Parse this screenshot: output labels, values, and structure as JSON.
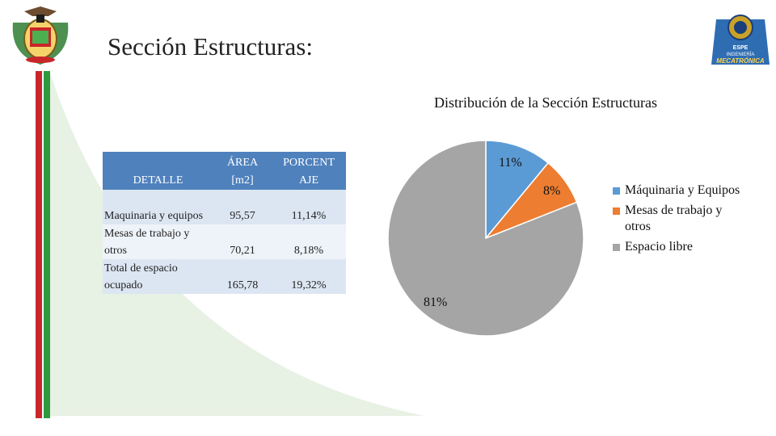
{
  "slide": {
    "title": "Sección Estructuras:"
  },
  "table": {
    "headers": [
      "DETALLE",
      "ÁREA\n[m2]",
      "PORCENT\nAJE"
    ],
    "rows": [
      [
        "Maquinaria y equipos",
        "95,57",
        "11,14%"
      ],
      [
        "Mesas de trabajo y otros",
        "70,21",
        "8,18%"
      ],
      [
        "Total de espacio ocupado",
        "165,78",
        "19,32%"
      ]
    ]
  },
  "logo_right": {
    "line1": "ESPE",
    "line2": "INGENIERÍA",
    "line3": "MECATRÓNICA"
  },
  "chart_data": {
    "type": "pie",
    "title": "Distribución de la Sección Estructuras",
    "categories": [
      "Máquinaria y Equipos",
      "Mesas de trabajo y otros",
      "Espacio libre"
    ],
    "values": [
      11,
      8,
      81
    ],
    "labels": [
      "11%",
      "8%",
      "81%"
    ],
    "colors": [
      "#5b9bd5",
      "#ed7d31",
      "#a5a5a5"
    ],
    "legend": "right"
  }
}
